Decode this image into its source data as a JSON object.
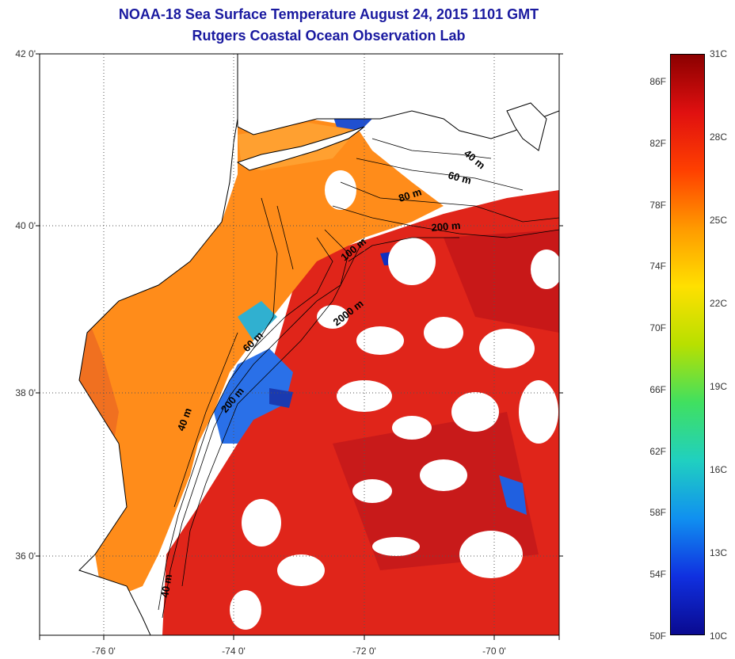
{
  "title_line1": "NOAA-18 Sea Surface Temperature August 24, 2015 1101 GMT",
  "title_line2": "Rutgers Coastal Ocean Observation Lab",
  "lat_ticks": [
    "42 0'",
    "40 0'",
    "38 0'",
    "36 0'"
  ],
  "lon_ticks": [
    "-76 0'",
    "-74 0'",
    "-72 0'",
    "-70 0'"
  ],
  "colorbar": {
    "fahrenheit_labels": [
      "86F",
      "82F",
      "78F",
      "74F",
      "70F",
      "66F",
      "62F",
      "58F",
      "54F",
      "50F"
    ],
    "celsius_labels": [
      "31C",
      "28C",
      "25C",
      "22C",
      "19C",
      "16C",
      "13C",
      "10C"
    ],
    "colors": [
      "#8b0000",
      "#e01010",
      "#ff4000",
      "#ff9a00",
      "#ffe000",
      "#b8e000",
      "#40e060",
      "#20d0c0",
      "#1090f0",
      "#1030e0",
      "#0a0a90"
    ]
  },
  "contour_labels": [
    "40 m",
    "60 m",
    "80 m",
    "200 m",
    "100 m",
    "2000 m",
    "60 m",
    "200 m",
    "40 m",
    "40 m"
  ],
  "colors": {
    "title": "#1a1aa0",
    "land": "#ffffff",
    "shelf_water": "#ff8c1a",
    "open_ocean": "#e0251a",
    "cold_water": "#1a60e0"
  }
}
